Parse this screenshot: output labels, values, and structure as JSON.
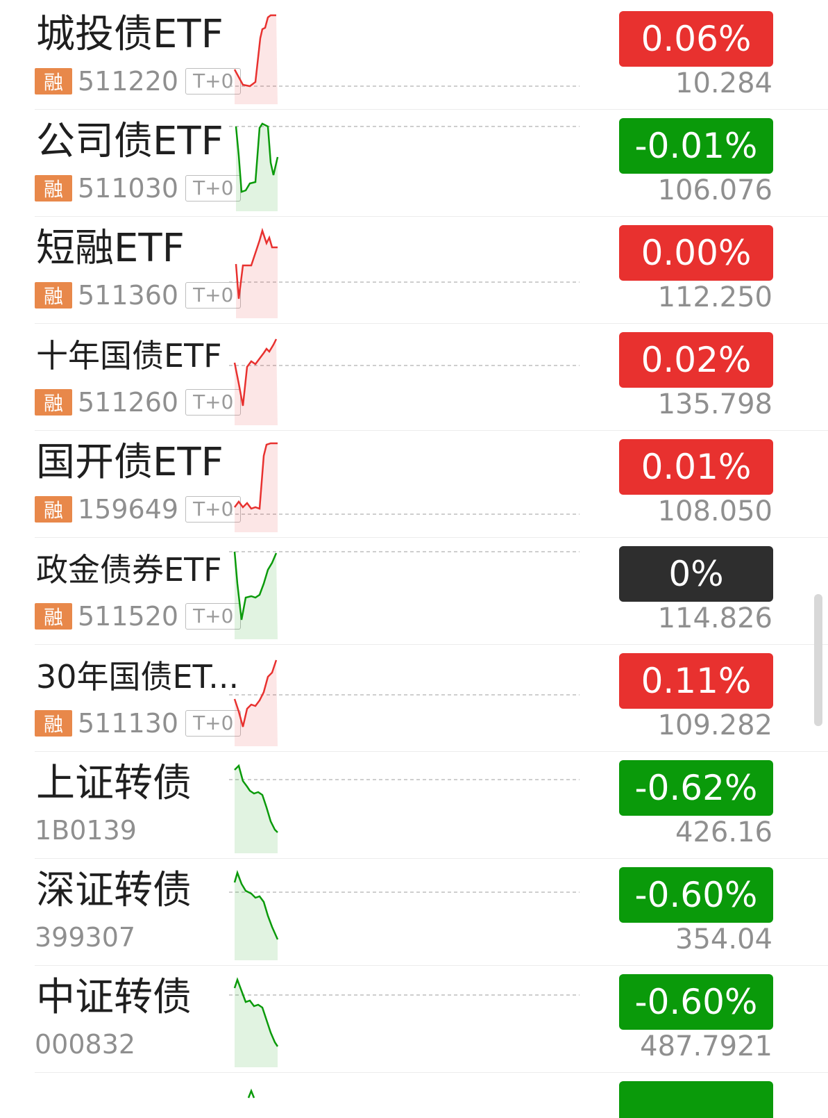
{
  "colors": {
    "up": "#e8312f",
    "down": "#0a9a0a",
    "flat": "#2e2e2e",
    "rong_badge": "#e8884a"
  },
  "tag_rong": "融",
  "tag_t0": "T+0",
  "rows": [
    {
      "name": "城投债ETF",
      "code": "511220",
      "change": "0.06%",
      "price": "10.284",
      "status": "up",
      "has_tags": true
    },
    {
      "name": "公司债ETF",
      "code": "511030",
      "change": "-0.01%",
      "price": "106.076",
      "status": "down",
      "has_tags": true
    },
    {
      "name": "短融ETF",
      "code": "511360",
      "change": "0.00%",
      "price": "112.250",
      "status": "up",
      "has_tags": true
    },
    {
      "name": "十年国债ETF",
      "code": "511260",
      "change": "0.02%",
      "price": "135.798",
      "status": "up",
      "has_tags": true
    },
    {
      "name": "国开债ETF",
      "code": "159649",
      "change": "0.01%",
      "price": "108.050",
      "status": "up",
      "has_tags": true
    },
    {
      "name": "政金债券ETF",
      "code": "511520",
      "change": "0%",
      "price": "114.826",
      "status": "flat",
      "has_tags": true
    },
    {
      "name": "30年国债ET...",
      "code": "511130",
      "change": "0.11%",
      "price": "109.282",
      "status": "up",
      "has_tags": true
    },
    {
      "name": "上证转债",
      "code": "1B0139",
      "change": "-0.62%",
      "price": "426.16",
      "status": "down",
      "has_tags": false
    },
    {
      "name": "深证转债",
      "code": "399307",
      "change": "-0.60%",
      "price": "354.04",
      "status": "down",
      "has_tags": false
    },
    {
      "name": "中证转债",
      "code": "000832",
      "change": "-0.60%",
      "price": "487.7921",
      "status": "down",
      "has_tags": false
    }
  ]
}
